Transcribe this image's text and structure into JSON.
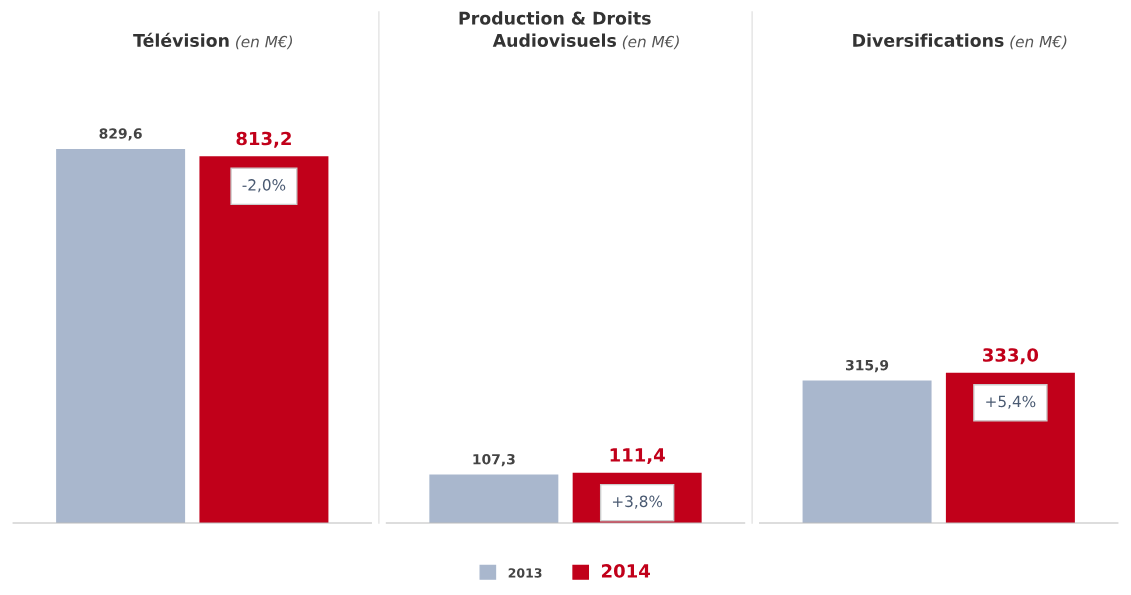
{
  "chart_data": [
    {
      "type": "bar",
      "title": "Télévision",
      "subtitle": "(en M€)",
      "categories": [
        null
      ],
      "tick_labels": false,
      "grid": false,
      "legend": "bottom",
      "series": [
        {
          "name": "2013",
          "color": "#a9b7cd",
          "values": [
            829.6
          ],
          "value_labels": [
            "829,6"
          ]
        },
        {
          "name": "2014",
          "color": "#c1001a",
          "values": [
            813.2
          ],
          "value_labels": [
            "813,2"
          ]
        }
      ],
      "annotations": [
        "-2,0%"
      ]
    },
    {
      "type": "bar",
      "title": "Production & Droits\nAudiovisuels",
      "subtitle": "(en M€)",
      "categories": [
        null
      ],
      "tick_labels": false,
      "grid": false,
      "legend": "bottom",
      "series": [
        {
          "name": "2013",
          "color": "#a9b7cd",
          "values": [
            107.3
          ],
          "value_labels": [
            "107,3"
          ]
        },
        {
          "name": "2014",
          "color": "#c1001a",
          "values": [
            111.4
          ],
          "value_labels": [
            "111,4"
          ]
        }
      ],
      "annotations": [
        "+3,8%"
      ]
    },
    {
      "type": "bar",
      "title": "Diversifications",
      "subtitle": "(en M€)",
      "categories": [
        null
      ],
      "tick_labels": false,
      "grid": false,
      "legend": "bottom",
      "series": [
        {
          "name": "2013",
          "color": "#a9b7cd",
          "values": [
            315.9
          ],
          "value_labels": [
            "315,9"
          ]
        },
        {
          "name": "2014",
          "color": "#c1001a",
          "values": [
            333.0
          ],
          "value_labels": [
            "333,0"
          ]
        }
      ],
      "annotations": [
        "+5,4%"
      ]
    }
  ]
}
